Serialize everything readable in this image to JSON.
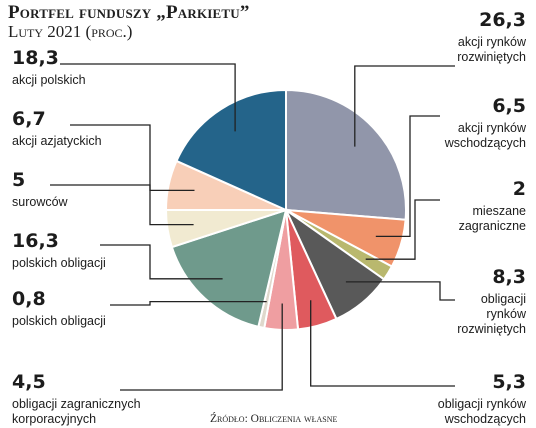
{
  "header": {
    "title": "Portfel funduszy „Parkietu”",
    "subtitle": "Luty 2021 (proc.)"
  },
  "source": "Źródło: Obliczenia własne",
  "chart_data": {
    "type": "pie",
    "title": "Portfel funduszy „Parkietu”",
    "subtitle": "Luty 2021 (proc.)",
    "slices": [
      {
        "value": 26.3,
        "value_label": "26,3",
        "label": [
          "akcji rynków",
          "rozwiniętych"
        ],
        "color": "#9196aa"
      },
      {
        "value": 6.5,
        "value_label": "6,5",
        "label": [
          "akcji rynków",
          "wschodzących"
        ],
        "color": "#f0936a"
      },
      {
        "value": 2,
        "value_label": "2",
        "label": [
          "mieszane",
          "zagraniczne"
        ],
        "color": "#b9b86e"
      },
      {
        "value": 8.3,
        "value_label": "8,3",
        "label": [
          "obligacji",
          "rynków",
          "rozwiniętych"
        ],
        "color": "#595959"
      },
      {
        "value": 5.3,
        "value_label": "5,3",
        "label": [
          "obligacji rynków",
          "wschodzących"
        ],
        "color": "#df5a5e"
      },
      {
        "value": 4.5,
        "value_label": "4,5",
        "label": [
          "obligacji zagranicznych",
          "korporacyjnych"
        ],
        "color": "#ef9ea1"
      },
      {
        "value": 0.8,
        "value_label": "0,8",
        "label": [
          "polskich obligacji"
        ],
        "color": "#dfd8cc"
      },
      {
        "value": 16.3,
        "value_label": "16,3",
        "label": [
          "polskich obligacji"
        ],
        "color": "#6f9a8c"
      },
      {
        "value": 5,
        "value_label": "5",
        "label": [
          "surowców"
        ],
        "color": "#f1ead1"
      },
      {
        "value": 6.7,
        "value_label": "6,7",
        "label": [
          "akcji azjatyckich"
        ],
        "color": "#f8cfb8"
      },
      {
        "value": 18.3,
        "value_label": "18,3",
        "label": [
          "akcji polskich"
        ],
        "color": "#24648a"
      }
    ]
  }
}
